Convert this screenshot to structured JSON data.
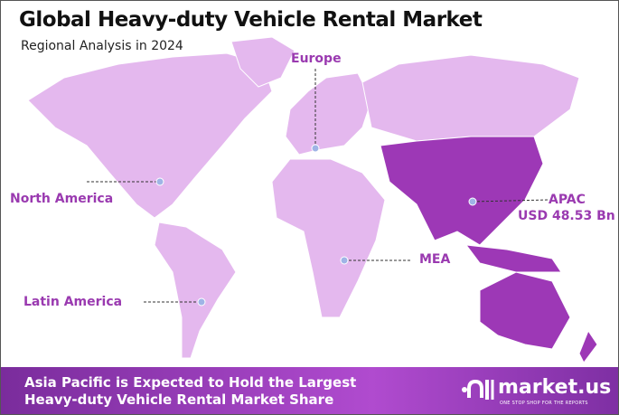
{
  "header": {
    "title": "Global Heavy-duty Vehicle Rental Market",
    "subtitle": "Regional Analysis in 2024"
  },
  "regions": [
    {
      "name": "Europe"
    },
    {
      "name": "North America"
    },
    {
      "name": "APAC",
      "value": "USD 48.53 Bn",
      "highlighted": true
    },
    {
      "name": "MEA"
    },
    {
      "name": "Latin America"
    }
  ],
  "colors": {
    "land": "#e2b3ec",
    "highlight": "#9d38b6",
    "label": "#9a3ab0",
    "marker": "#9fb4e6"
  },
  "footer": {
    "line1": "Asia Pacific is Expected to Hold the Largest",
    "line2": "Heavy-duty Vehicle Rental Market Share"
  },
  "logo": {
    "name": "market.us",
    "tagline": "ONE STOP SHOP FOR THE REPORTS"
  }
}
